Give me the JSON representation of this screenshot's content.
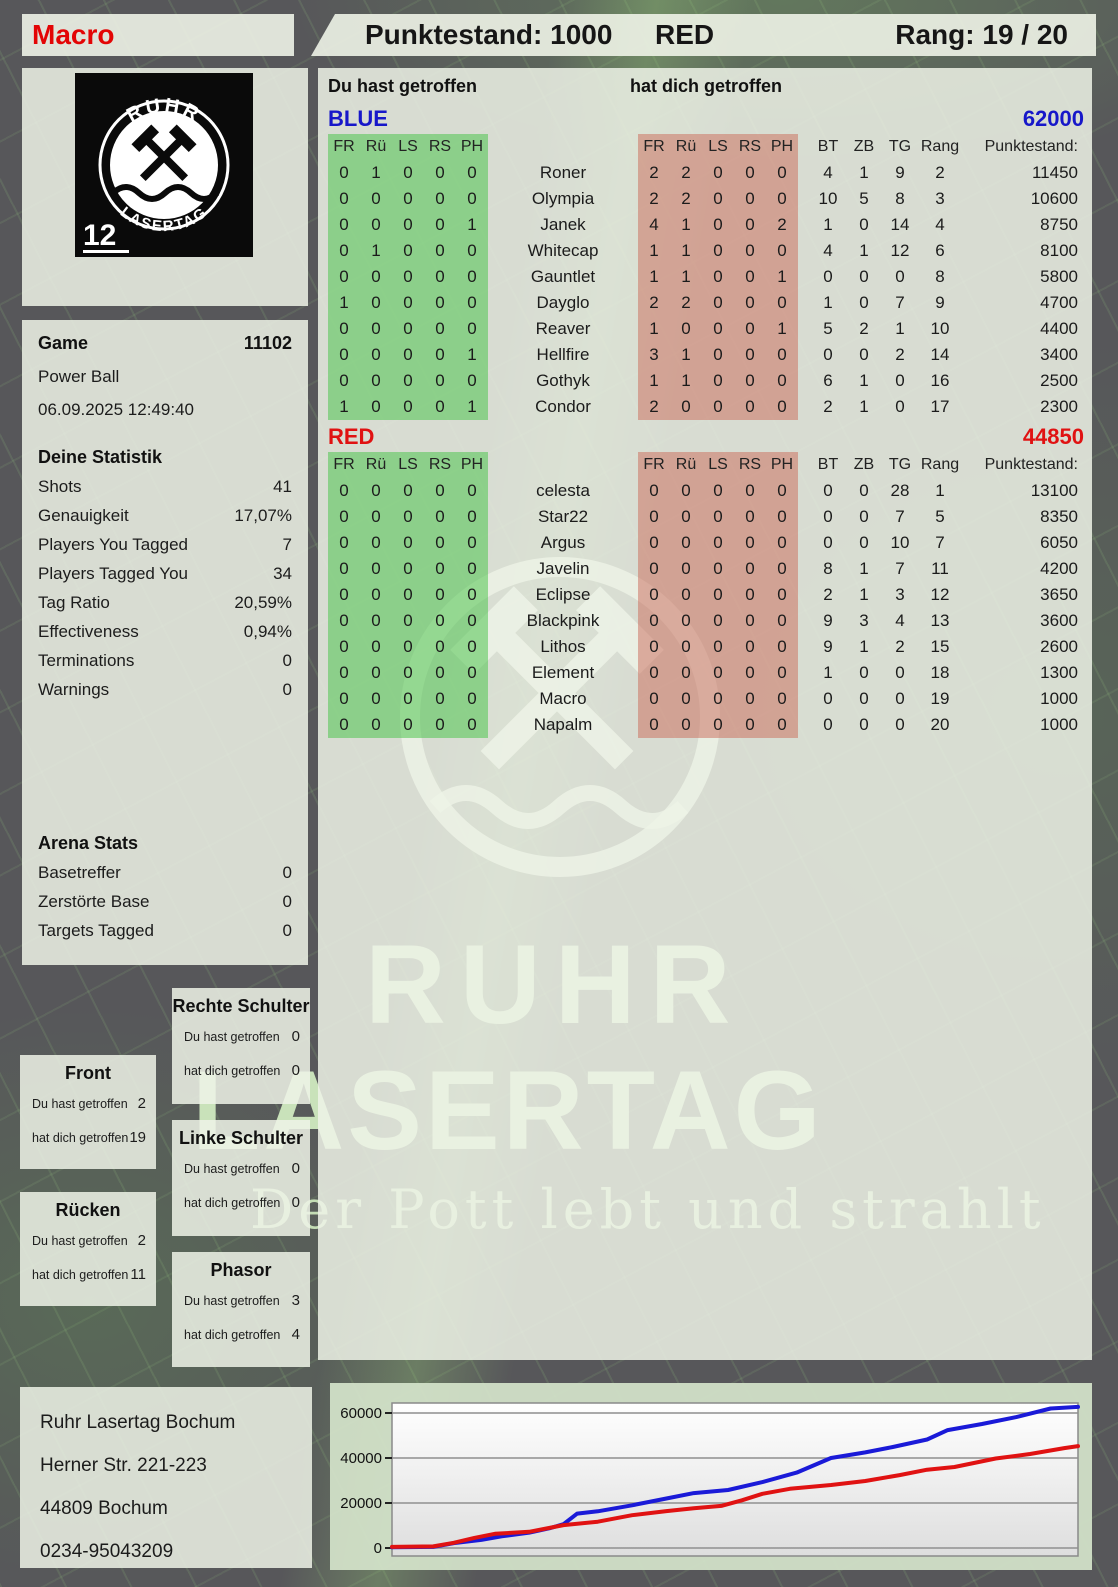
{
  "header": {
    "player": "Macro",
    "punktestand": "Punktestand: 1000",
    "team": "RED",
    "rang": "Rang: 19 / 20"
  },
  "logo": {
    "top": "RUHR",
    "bottom": "LASERTAG",
    "badge": "12"
  },
  "game": {
    "label": "Game",
    "number": "11102",
    "mode": "Power Ball",
    "datetime": "06.09.2025 12:49:40"
  },
  "stats": {
    "title": "Deine Statistik",
    "rows": [
      [
        "Shots",
        "41"
      ],
      [
        "Genauigkeit",
        "17,07%"
      ],
      [
        "Players You Tagged",
        "7"
      ],
      [
        "Players Tagged You",
        "34"
      ],
      [
        "Tag Ratio",
        "20,59%"
      ],
      [
        "Effectiveness",
        "0,94%"
      ],
      [
        "Terminations",
        "0"
      ],
      [
        "Warnings",
        "0"
      ]
    ]
  },
  "arena": {
    "title": "Arena Stats",
    "rows": [
      [
        "Basetreffer",
        "0"
      ],
      [
        "Zerstörte Base",
        "0"
      ],
      [
        "Targets Tagged",
        "0"
      ]
    ]
  },
  "labels": {
    "you_hit": "Du hast getroffen",
    "hit_you": "hat dich getroffen"
  },
  "columns": {
    "hit": [
      "FR",
      "Rü",
      "LS",
      "RS",
      "PH"
    ],
    "stats": [
      "BT",
      "ZB",
      "TG",
      "Rang",
      "Punktestand:"
    ]
  },
  "teams": [
    {
      "name": "BLUE",
      "color": "#1717c9",
      "total": "62000",
      "players": [
        {
          "name": "Roner",
          "you": [
            0,
            1,
            0,
            0,
            0
          ],
          "them": [
            2,
            2,
            0,
            0,
            0
          ],
          "bt": "4",
          "zb": "1",
          "tg": "9",
          "rang": "2",
          "punkte": "11450"
        },
        {
          "name": "Olympia",
          "you": [
            0,
            0,
            0,
            0,
            0
          ],
          "them": [
            2,
            2,
            0,
            0,
            0
          ],
          "bt": "10",
          "zb": "5",
          "tg": "8",
          "rang": "3",
          "punkte": "10600"
        },
        {
          "name": "Janek",
          "you": [
            0,
            0,
            0,
            0,
            1
          ],
          "them": [
            4,
            1,
            0,
            0,
            2
          ],
          "bt": "1",
          "zb": "0",
          "tg": "14",
          "rang": "4",
          "punkte": "8750"
        },
        {
          "name": "Whitecap",
          "you": [
            0,
            1,
            0,
            0,
            0
          ],
          "them": [
            1,
            1,
            0,
            0,
            0
          ],
          "bt": "4",
          "zb": "1",
          "tg": "12",
          "rang": "6",
          "punkte": "8100"
        },
        {
          "name": "Gauntlet",
          "you": [
            0,
            0,
            0,
            0,
            0
          ],
          "them": [
            1,
            1,
            0,
            0,
            1
          ],
          "bt": "0",
          "zb": "0",
          "tg": "0",
          "rang": "8",
          "punkte": "5800"
        },
        {
          "name": "Dayglo",
          "you": [
            1,
            0,
            0,
            0,
            0
          ],
          "them": [
            2,
            2,
            0,
            0,
            0
          ],
          "bt": "1",
          "zb": "0",
          "tg": "7",
          "rang": "9",
          "punkte": "4700"
        },
        {
          "name": "Reaver",
          "you": [
            0,
            0,
            0,
            0,
            0
          ],
          "them": [
            1,
            0,
            0,
            0,
            1
          ],
          "bt": "5",
          "zb": "2",
          "tg": "1",
          "rang": "10",
          "punkte": "4400"
        },
        {
          "name": "Hellfire",
          "you": [
            0,
            0,
            0,
            0,
            1
          ],
          "them": [
            3,
            1,
            0,
            0,
            0
          ],
          "bt": "0",
          "zb": "0",
          "tg": "2",
          "rang": "14",
          "punkte": "3400"
        },
        {
          "name": "Gothyk",
          "you": [
            0,
            0,
            0,
            0,
            0
          ],
          "them": [
            1,
            1,
            0,
            0,
            0
          ],
          "bt": "6",
          "zb": "1",
          "tg": "0",
          "rang": "16",
          "punkte": "2500"
        },
        {
          "name": "Condor",
          "you": [
            1,
            0,
            0,
            0,
            1
          ],
          "them": [
            2,
            0,
            0,
            0,
            0
          ],
          "bt": "2",
          "zb": "1",
          "tg": "0",
          "rang": "17",
          "punkte": "2300"
        }
      ]
    },
    {
      "name": "RED",
      "color": "#e01212",
      "total": "44850",
      "players": [
        {
          "name": "celesta",
          "you": [
            0,
            0,
            0,
            0,
            0
          ],
          "them": [
            0,
            0,
            0,
            0,
            0
          ],
          "bt": "0",
          "zb": "0",
          "tg": "28",
          "rang": "1",
          "punkte": "13100"
        },
        {
          "name": "Star22",
          "you": [
            0,
            0,
            0,
            0,
            0
          ],
          "them": [
            0,
            0,
            0,
            0,
            0
          ],
          "bt": "0",
          "zb": "0",
          "tg": "7",
          "rang": "5",
          "punkte": "8350"
        },
        {
          "name": "Argus",
          "you": [
            0,
            0,
            0,
            0,
            0
          ],
          "them": [
            0,
            0,
            0,
            0,
            0
          ],
          "bt": "0",
          "zb": "0",
          "tg": "10",
          "rang": "7",
          "punkte": "6050"
        },
        {
          "name": "Javelin",
          "you": [
            0,
            0,
            0,
            0,
            0
          ],
          "them": [
            0,
            0,
            0,
            0,
            0
          ],
          "bt": "8",
          "zb": "1",
          "tg": "7",
          "rang": "11",
          "punkte": "4200"
        },
        {
          "name": "Eclipse",
          "you": [
            0,
            0,
            0,
            0,
            0
          ],
          "them": [
            0,
            0,
            0,
            0,
            0
          ],
          "bt": "2",
          "zb": "1",
          "tg": "3",
          "rang": "12",
          "punkte": "3650"
        },
        {
          "name": "Blackpink",
          "you": [
            0,
            0,
            0,
            0,
            0
          ],
          "them": [
            0,
            0,
            0,
            0,
            0
          ],
          "bt": "9",
          "zb": "3",
          "tg": "4",
          "rang": "13",
          "punkte": "3600"
        },
        {
          "name": "Lithos",
          "you": [
            0,
            0,
            0,
            0,
            0
          ],
          "them": [
            0,
            0,
            0,
            0,
            0
          ],
          "bt": "9",
          "zb": "1",
          "tg": "2",
          "rang": "15",
          "punkte": "2600"
        },
        {
          "name": "Element",
          "you": [
            0,
            0,
            0,
            0,
            0
          ],
          "them": [
            0,
            0,
            0,
            0,
            0
          ],
          "bt": "1",
          "zb": "0",
          "tg": "0",
          "rang": "18",
          "punkte": "1300"
        },
        {
          "name": "Macro",
          "you": [
            0,
            0,
            0,
            0,
            0
          ],
          "them": [
            0,
            0,
            0,
            0,
            0
          ],
          "bt": "0",
          "zb": "0",
          "tg": "0",
          "rang": "19",
          "punkte": "1000"
        },
        {
          "name": "Napalm",
          "you": [
            0,
            0,
            0,
            0,
            0
          ],
          "them": [
            0,
            0,
            0,
            0,
            0
          ],
          "bt": "0",
          "zb": "0",
          "tg": "0",
          "rang": "20",
          "punkte": "1000"
        }
      ]
    }
  ],
  "parts": {
    "front": {
      "title": "Front",
      "you": "2",
      "them": "19"
    },
    "ruecken": {
      "title": "Rücken",
      "you": "2",
      "them": "11"
    },
    "rechte": {
      "title": "Rechte Schulter",
      "you": "0",
      "them": "0"
    },
    "linke": {
      "title": "Linke Schulter",
      "you": "0",
      "them": "0"
    },
    "phasor": {
      "title": "Phasor",
      "you": "3",
      "them": "4"
    }
  },
  "footer": {
    "lines": [
      "Ruhr Lasertag Bochum",
      "Herner Str. 221-223",
      "44809 Bochum",
      "0234-95043209"
    ]
  },
  "watermark": {
    "line1": "RUHR",
    "line2": "LASERTAG",
    "tagline": "Der Pott lebt und strahlt"
  },
  "chart_data": {
    "type": "line",
    "title": "",
    "xlabel": "",
    "ylabel": "",
    "ylim": [
      0,
      64000
    ],
    "grid": true,
    "legend": "none",
    "yticks": [
      {
        "label": "0",
        "value": 0
      },
      {
        "label": "20000",
        "value": 20000
      },
      {
        "label": "40000",
        "value": 40000
      },
      {
        "label": "60000",
        "value": 60000
      }
    ],
    "series": [
      {
        "name": "BLUE",
        "color": "#1a1ad8",
        "points": [
          [
            0,
            300
          ],
          [
            6,
            500
          ],
          [
            9,
            2200
          ],
          [
            13,
            3600
          ],
          [
            16,
            5200
          ],
          [
            20,
            6800
          ],
          [
            23,
            8800
          ],
          [
            25,
            10600
          ],
          [
            27,
            15300
          ],
          [
            30,
            16300
          ],
          [
            35,
            19000
          ],
          [
            40,
            22000
          ],
          [
            44,
            24400
          ],
          [
            49,
            25800
          ],
          [
            54,
            29300
          ],
          [
            59,
            33500
          ],
          [
            64,
            40000
          ],
          [
            69,
            42500
          ],
          [
            73,
            44900
          ],
          [
            78,
            48200
          ],
          [
            81,
            52400
          ],
          [
            86,
            55100
          ],
          [
            91,
            58200
          ],
          [
            96,
            62000
          ],
          [
            100,
            62700
          ]
        ]
      },
      {
        "name": "RED",
        "color": "#e01212",
        "points": [
          [
            0,
            500
          ],
          [
            6,
            700
          ],
          [
            9,
            2300
          ],
          [
            12,
            4500
          ],
          [
            15,
            6300
          ],
          [
            20,
            7200
          ],
          [
            25,
            10200
          ],
          [
            30,
            11700
          ],
          [
            35,
            14600
          ],
          [
            40,
            16400
          ],
          [
            44,
            17700
          ],
          [
            48,
            18700
          ],
          [
            51,
            21200
          ],
          [
            54,
            24100
          ],
          [
            58,
            26300
          ],
          [
            64,
            28000
          ],
          [
            69,
            29800
          ],
          [
            74,
            32400
          ],
          [
            78,
            34800
          ],
          [
            82,
            36000
          ],
          [
            88,
            39800
          ],
          [
            93,
            41800
          ],
          [
            98,
            44400
          ],
          [
            100,
            45300
          ]
        ]
      }
    ]
  }
}
